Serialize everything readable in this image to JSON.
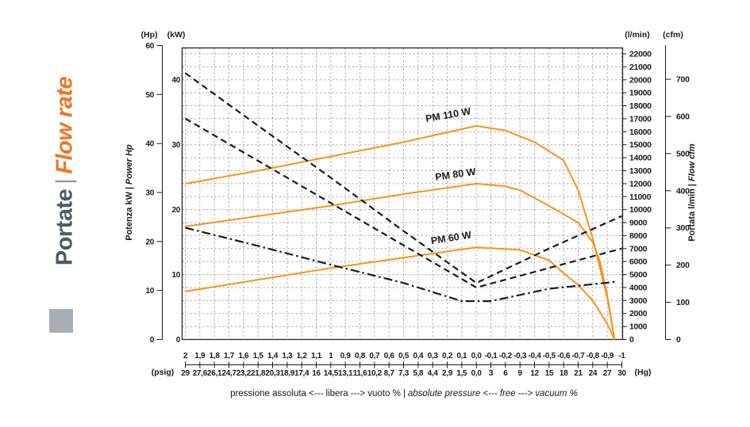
{
  "sidebar_title": {
    "it": "Portate",
    "sep": "|",
    "en": "Flow rate"
  },
  "colors": {
    "accent_orange": "#F7941E",
    "title_orange": "#ED7723",
    "title_slate": "#4E5A64",
    "separator_gray": "#8F959C",
    "square_gray": "#A9AEB4",
    "curve_black": "#1a1a1a",
    "grid_gray": "#ADADAD",
    "border_black": "#222222"
  },
  "chart_data": {
    "type": "line",
    "title": "",
    "grid": "on",
    "y_left": {
      "unit_hp": "(Hp)",
      "unit_kw": "(kW)",
      "title_it": "Potenza kW",
      "title_sep": "|",
      "title_en": "Power Hp",
      "hp_ticks": [
        60,
        50,
        40,
        30,
        20,
        10,
        0
      ],
      "hp_range": [
        0,
        60
      ],
      "kw_ticks": [
        40,
        30,
        20,
        10,
        0
      ],
      "kw_range": [
        0,
        40
      ]
    },
    "y_right": {
      "unit_lmin": "(l/min)",
      "unit_cfm": "(cfm)",
      "title_it": "Portata l/min",
      "title_sep": "|",
      "title_en": "Flow cfm",
      "lmin_ticks": [
        22000,
        21000,
        20000,
        19000,
        18000,
        17000,
        16000,
        15000,
        14000,
        13000,
        12000,
        11000,
        10000,
        9000,
        8000,
        7000,
        6000,
        5000,
        4000,
        3000,
        2000,
        1000,
        0
      ],
      "lmin_range": [
        0,
        22000
      ],
      "cfm_ticks": [
        700,
        600,
        500,
        400,
        300,
        200,
        100,
        0
      ],
      "cfm_range": [
        0,
        700
      ]
    },
    "x_axis": {
      "unit_left": "(psig)",
      "unit_right": "(Hg)",
      "bar_range": [
        2,
        -1
      ],
      "bar_ticks": [
        "2",
        "1,9",
        "1,8",
        "1,7",
        "1,6",
        "1,5",
        "1,4",
        "1,3",
        "1,2",
        "1,1",
        "1",
        "0,9",
        "0,8",
        "0,7",
        "0,6",
        "0,5",
        "0,4",
        "0,3",
        "0,2",
        "0,1",
        "0,0",
        "-0,1",
        "-0,2",
        "-0,3",
        "-0,4",
        "-0,5",
        "-0,6",
        "-0,7",
        "-0,8",
        "-0,9",
        "-1"
      ],
      "psig_ticks": [
        "29",
        "27,6",
        "26,1",
        "24,7",
        "23,2",
        "21,8",
        "20,3",
        "18,9",
        "17,4",
        "16",
        "14,5",
        "13,1",
        "11,6",
        "10,2",
        "8,7",
        "7,3",
        "5,8",
        "4,4",
        "2,9",
        "1,5",
        "0,0",
        "3",
        "6",
        "9",
        "12",
        "15",
        "18",
        "21",
        "24",
        "27",
        "30"
      ],
      "caption_it": "pressione assoluta <--- libera ---> vuoto %",
      "caption_sep": "|",
      "caption_en": "absolute pressure <--- free ---> vacuum %"
    },
    "series": [
      {
        "name": "PM 110 W",
        "kind": "flow",
        "axis": "l/min",
        "style": "solid",
        "color": "#F7941E",
        "width": 2,
        "points": [
          [
            2,
            12000
          ],
          [
            1.5,
            13000
          ],
          [
            1,
            14100
          ],
          [
            0.5,
            15200
          ],
          [
            0,
            16450
          ],
          [
            -0.2,
            16100
          ],
          [
            -0.4,
            15200
          ],
          [
            -0.6,
            13800
          ],
          [
            -0.7,
            11500
          ],
          [
            -0.8,
            7800
          ],
          [
            -0.9,
            3200
          ],
          [
            -0.95,
            0
          ]
        ]
      },
      {
        "name": "PM 80 W",
        "kind": "flow",
        "axis": "l/min",
        "style": "solid",
        "color": "#F7941E",
        "width": 2,
        "points": [
          [
            2,
            8700
          ],
          [
            1.5,
            9500
          ],
          [
            1,
            10300
          ],
          [
            0.5,
            11200
          ],
          [
            0,
            12000
          ],
          [
            -0.2,
            11800
          ],
          [
            -0.3,
            11500
          ],
          [
            -0.5,
            10300
          ],
          [
            -0.7,
            9000
          ],
          [
            -0.8,
            7500
          ],
          [
            -0.85,
            6000
          ],
          [
            -0.9,
            3400
          ],
          [
            -0.95,
            0
          ]
        ]
      },
      {
        "name": "PM 60 W",
        "kind": "flow",
        "axis": "l/min",
        "style": "solid",
        "color": "#F7941E",
        "width": 2,
        "points": [
          [
            2,
            3700
          ],
          [
            1.5,
            4600
          ],
          [
            1,
            5500
          ],
          [
            0.5,
            6300
          ],
          [
            0,
            7100
          ],
          [
            -0.3,
            6900
          ],
          [
            -0.5,
            6100
          ],
          [
            -0.6,
            5100
          ],
          [
            -0.7,
            4200
          ],
          [
            -0.8,
            3000
          ],
          [
            -0.9,
            1200
          ],
          [
            -0.95,
            0
          ]
        ]
      },
      {
        "name": "PM 110 W",
        "kind": "power",
        "axis": "kW",
        "style": "dashed",
        "color": "#1a1a1a",
        "width": 2.2,
        "dash": "8 5",
        "points": [
          [
            2,
            41
          ],
          [
            1.5,
            32.9
          ],
          [
            1,
            24.9
          ],
          [
            0.5,
            16.7
          ],
          [
            0,
            8.7
          ],
          [
            -0.5,
            14
          ],
          [
            -1,
            19
          ]
        ]
      },
      {
        "name": "PM 80 W",
        "kind": "power",
        "axis": "kW",
        "style": "dashed",
        "color": "#1a1a1a",
        "width": 2.2,
        "dash": "8 5",
        "points": [
          [
            2,
            34
          ],
          [
            1.5,
            27.5
          ],
          [
            1,
            21
          ],
          [
            0.5,
            14.5
          ],
          [
            0,
            8
          ],
          [
            -0.5,
            11
          ],
          [
            -1,
            14
          ]
        ]
      },
      {
        "name": "PM 60 W",
        "kind": "power",
        "axis": "kW",
        "style": "dashdot",
        "color": "#1a1a1a",
        "width": 2.2,
        "dash": "11 4 2.5 4",
        "points": [
          [
            2,
            17.2
          ],
          [
            1.5,
            14.4
          ],
          [
            1,
            11.5
          ],
          [
            0.5,
            8.7
          ],
          [
            0.1,
            5.9
          ],
          [
            -0.1,
            5.9
          ],
          [
            -0.5,
            7.8
          ],
          [
            -0.97,
            8.9
          ]
        ]
      }
    ],
    "series_labels": [
      {
        "text": "PM 110 W",
        "bar": 0.19,
        "lmin": 17050,
        "rot": -10
      },
      {
        "text": "PM 80 W",
        "bar": 0.14,
        "lmin": 12470,
        "rot": -8
      },
      {
        "text": "PM 60 W",
        "bar": 0.17,
        "lmin": 7580,
        "rot": -9
      }
    ]
  }
}
